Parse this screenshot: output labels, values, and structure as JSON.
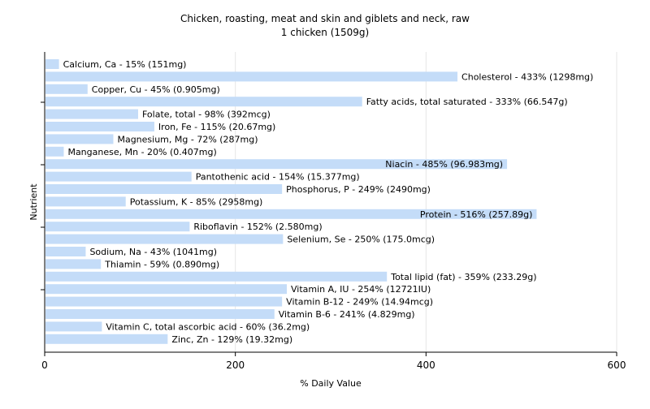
{
  "chart_data": {
    "type": "bar",
    "orientation": "horizontal",
    "title": "Chicken, roasting, meat and skin and giblets and neck, raw",
    "subtitle": "1 chicken (1509g)",
    "xlabel": "% Daily Value",
    "ylabel": "Nutrient",
    "xlim": [
      0,
      600
    ],
    "xticks": [
      0,
      200,
      400,
      600
    ],
    "grid": "vertical",
    "bar_color": "#c4dcf8",
    "categories": [
      "Calcium, Ca",
      "Cholesterol",
      "Copper, Cu",
      "Fatty acids, total saturated",
      "Folate, total",
      "Iron, Fe",
      "Magnesium, Mg",
      "Manganese, Mn",
      "Niacin",
      "Pantothenic acid",
      "Phosphorus, P",
      "Potassium, K",
      "Protein",
      "Riboflavin",
      "Selenium, Se",
      "Sodium, Na",
      "Thiamin",
      "Total lipid (fat)",
      "Vitamin A, IU",
      "Vitamin B-12",
      "Vitamin B-6",
      "Vitamin C, total ascorbic acid",
      "Zinc, Zn"
    ],
    "values": [
      15,
      433,
      45,
      333,
      98,
      115,
      72,
      20,
      485,
      154,
      249,
      85,
      516,
      152,
      250,
      43,
      59,
      359,
      254,
      249,
      241,
      60,
      129
    ],
    "labels": [
      "Calcium, Ca - 15% (151mg)",
      "Cholesterol - 433% (1298mg)",
      "Copper, Cu - 45% (0.905mg)",
      "Fatty acids, total saturated - 333% (66.547g)",
      "Folate, total - 98% (392mcg)",
      "Iron, Fe - 115% (20.67mg)",
      "Magnesium, Mg - 72% (287mg)",
      "Manganese, Mn - 20% (0.407mg)",
      "Niacin - 485% (96.983mg)",
      "Pantothenic acid - 154% (15.377mg)",
      "Phosphorus, P - 249% (2490mg)",
      "Potassium, K - 85% (2958mg)",
      "Protein - 516% (257.89g)",
      "Riboflavin - 152% (2.580mg)",
      "Selenium, Se - 250% (175.0mcg)",
      "Sodium, Na - 43% (1041mg)",
      "Thiamin - 59% (0.890mg)",
      "Total lipid (fat) - 359% (233.29g)",
      "Vitamin A, IU - 254% (12721IU)",
      "Vitamin B-12 - 249% (14.94mcg)",
      "Vitamin B-6 - 241% (4.829mg)",
      "Vitamin C, total ascorbic acid - 60% (36.2mg)",
      "Zinc, Zn - 129% (19.32mg)"
    ]
  }
}
